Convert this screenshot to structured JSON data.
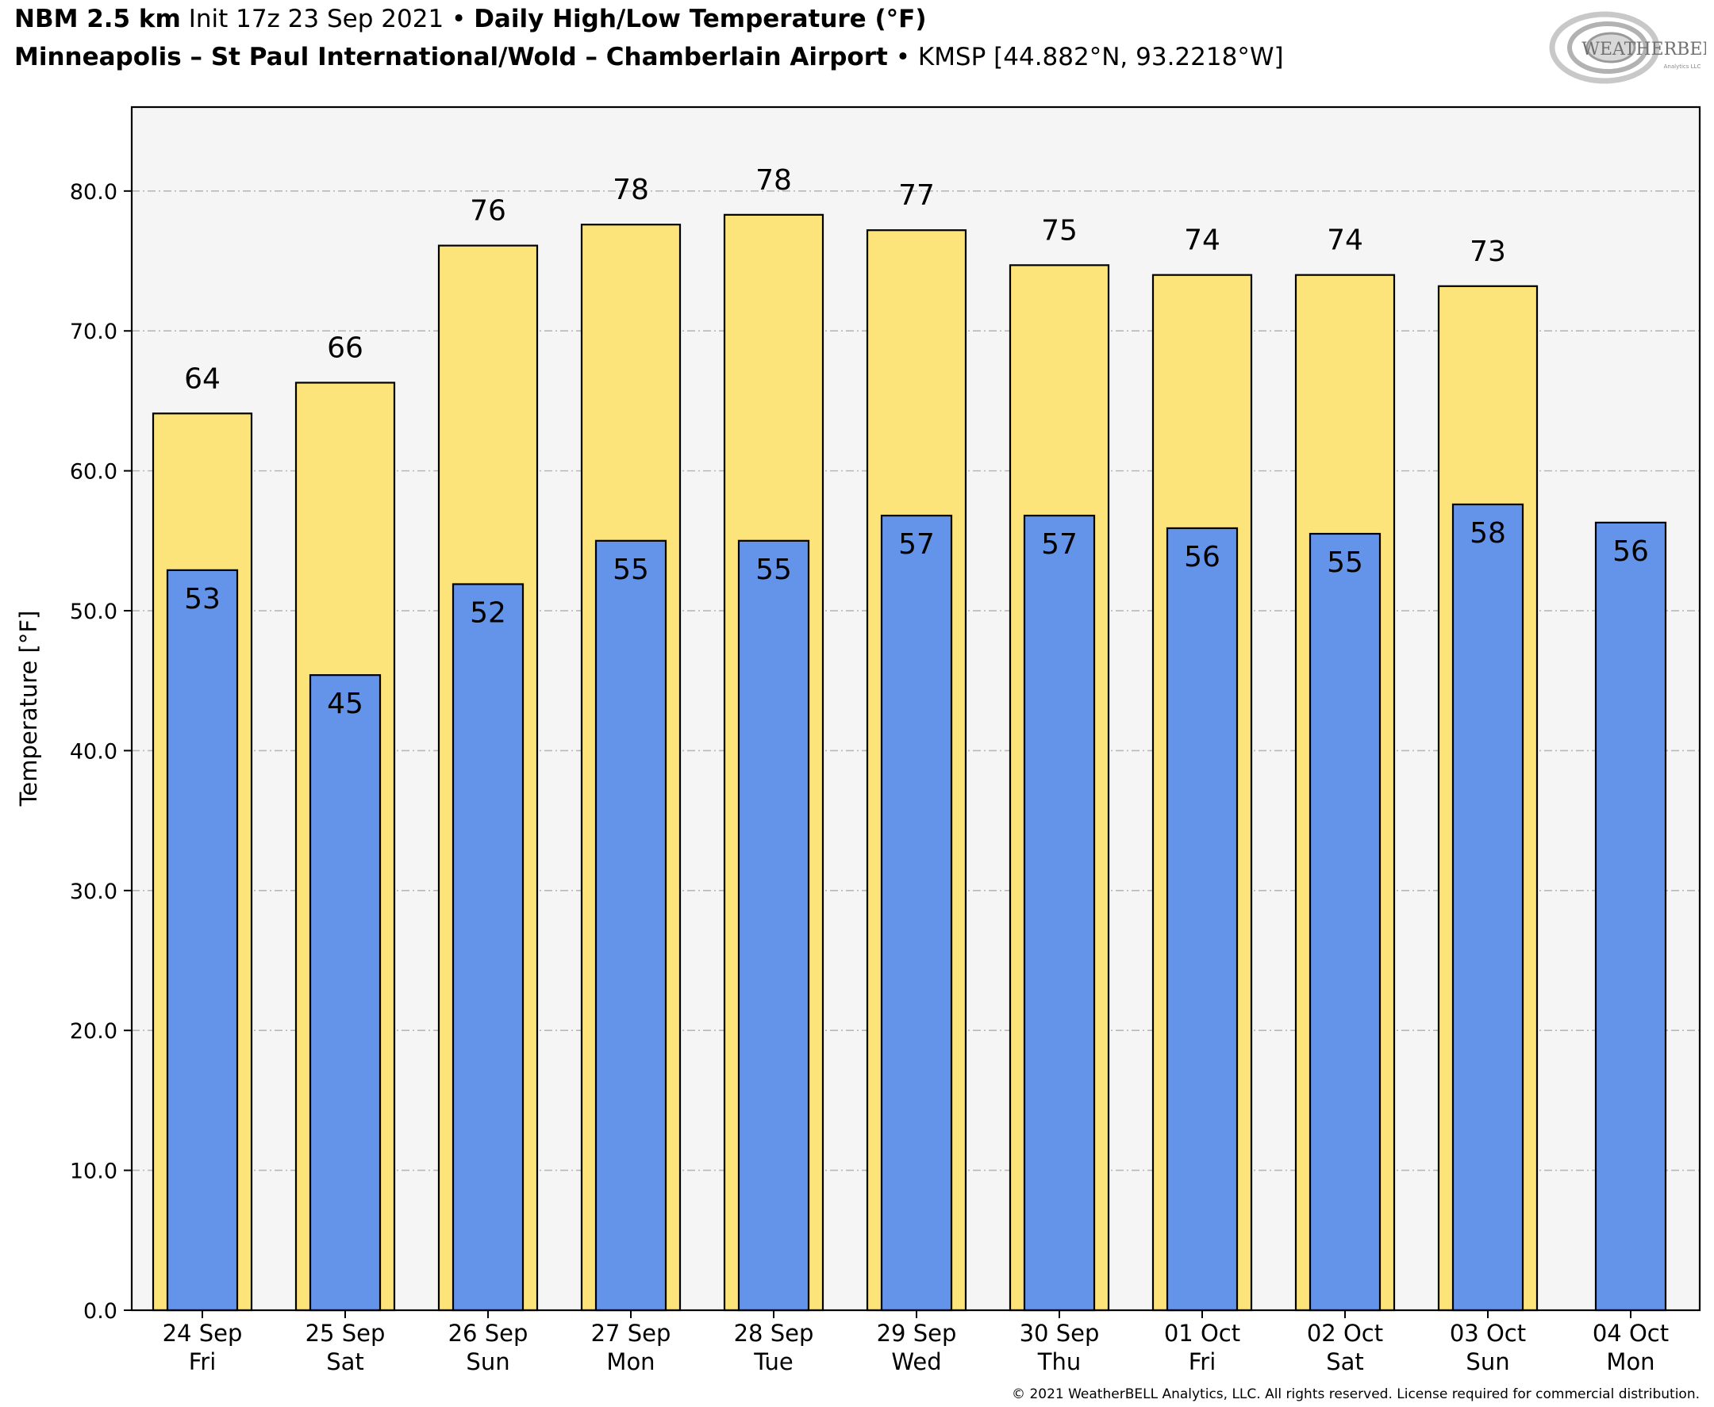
{
  "header": {
    "model": "NBM 2.5 km",
    "init": "Init 17z 23 Sep 2021",
    "sep": "•",
    "product": "Daily High/Low Temperature (°F)",
    "location": "Minneapolis – St Paul International/Wold – Chamberlain Airport",
    "station": "KMSP [44.882°N, 93.2218°W]"
  },
  "logo": {
    "text": "WEATHERBELL",
    "subtext": "Analytics LLC"
  },
  "footer": {
    "copyright": "© 2021 WeatherBELL Analytics, LLC. All rights reserved. License required for commercial distribution."
  },
  "chart_data": {
    "type": "bar",
    "title": "Daily High/Low Temperature (°F)",
    "ylabel": "Temperature [°F]",
    "ylim": [
      0,
      86
    ],
    "yticks": [
      "0.0",
      "10.0",
      "20.0",
      "30.0",
      "40.0",
      "50.0",
      "60.0",
      "70.0",
      "80.0"
    ],
    "grid": true,
    "categories": [
      "24 Sep",
      "25 Sep",
      "26 Sep",
      "27 Sep",
      "28 Sep",
      "29 Sep",
      "30 Sep",
      "01 Oct",
      "02 Oct",
      "03 Oct",
      "04 Oct"
    ],
    "weekdays": [
      "Fri",
      "Sat",
      "Sun",
      "Mon",
      "Tue",
      "Wed",
      "Thu",
      "Fri",
      "Sat",
      "Sun",
      "Mon"
    ],
    "series": [
      {
        "color": "#fce37a",
        "values": [
          64.1,
          66.3,
          76.1,
          77.6,
          78.3,
          77.2,
          74.7,
          74.0,
          74.0,
          73.2,
          null
        ],
        "labels": [
          "64",
          "66",
          "76",
          "78",
          "78",
          "77",
          "75",
          "74",
          "74",
          "73",
          ""
        ]
      },
      {
        "color": "#6494e9",
        "values": [
          52.9,
          45.4,
          51.9,
          55.0,
          55.0,
          56.8,
          56.8,
          55.9,
          55.5,
          57.6,
          56.3
        ],
        "labels": [
          "53",
          "45",
          "52",
          "55",
          "55",
          "57",
          "57",
          "56",
          "55",
          "58",
          "56"
        ]
      }
    ]
  }
}
